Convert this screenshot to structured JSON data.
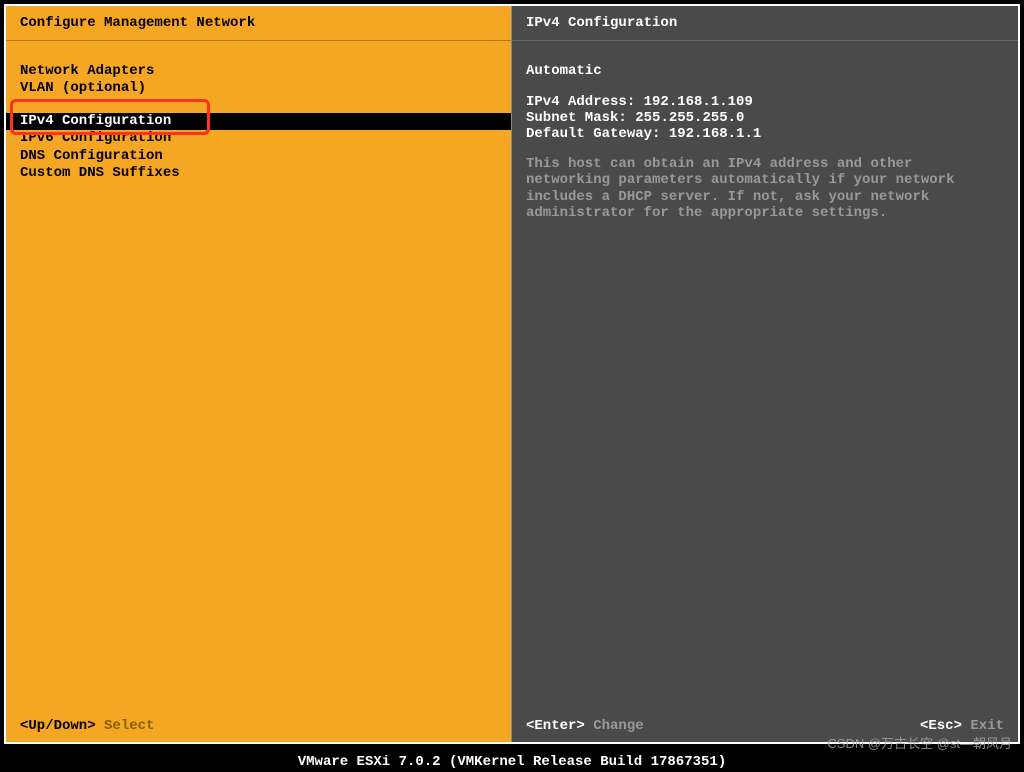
{
  "colors": {
    "left_bg": "#f5a623",
    "right_bg": "#4a4a4a",
    "black": "#000000",
    "white": "#ffffff",
    "hint_yellow": "#8a6000",
    "hint_grey": "#999999",
    "highlight_border": "#ff3020"
  },
  "left": {
    "title": "Configure Management Network",
    "items": [
      "Network Adapters",
      "VLAN (optional)",
      "",
      "IPv4 Configuration",
      "IPv6 Configuration",
      "DNS Configuration",
      "Custom DNS Suffixes"
    ],
    "selected_index": 3,
    "footer_key": "<Up/Down>",
    "footer_action": "Select"
  },
  "right": {
    "title": "IPv4 Configuration",
    "mode": "Automatic",
    "ipv4_label": "IPv4 Address:",
    "ipv4_value": "192.168.1.109",
    "subnet_label": "Subnet Mask:",
    "subnet_value": "255.255.255.0",
    "gateway_label": "Default Gateway:",
    "gateway_value": "192.168.1.1",
    "description": "This host can obtain an IPv4 address and other networking parameters automatically if your network includes a DHCP server. If not, ask your network administrator for the appropriate settings.",
    "footer_left_key": "<Enter>",
    "footer_left_action": "Change",
    "footer_right_key": "<Esc>",
    "footer_right_action": "Exit"
  },
  "version": "VMware ESXi 7.0.2 (VMKernel Release Build 17867351)",
  "watermark": "CSDN @万古长空 @st—朝风月"
}
